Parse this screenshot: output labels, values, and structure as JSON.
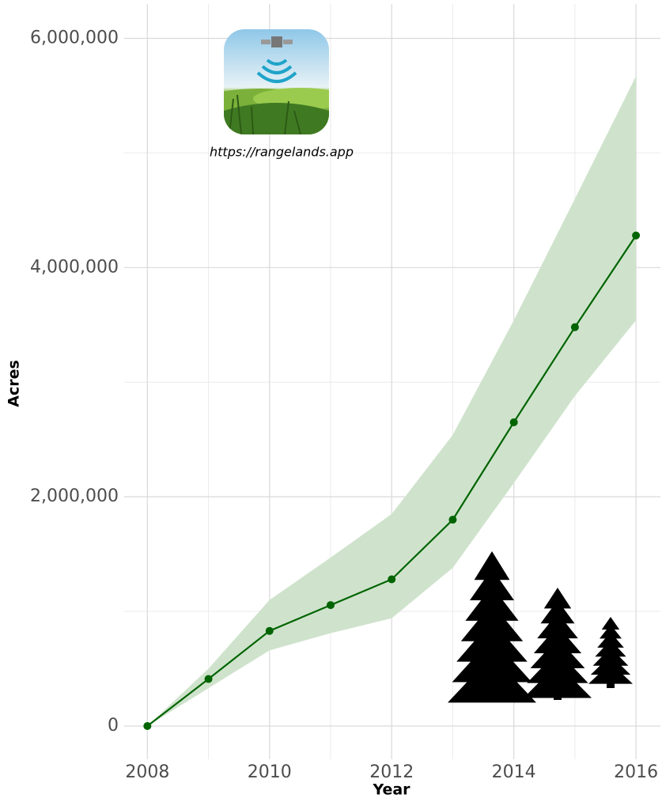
{
  "chart_data": {
    "type": "line",
    "x_label": "Year",
    "y_label": "Acres",
    "annotation": "https://rangelands.app",
    "x": [
      2008,
      2009,
      2010,
      2011,
      2012,
      2013,
      2014,
      2015,
      2016
    ],
    "values": [
      0,
      410000,
      830000,
      1055000,
      1280000,
      1800000,
      2650000,
      3480000,
      4280000
    ],
    "lower": [
      0,
      330000,
      660000,
      810000,
      940000,
      1380000,
      2120000,
      2880000,
      3540000
    ],
    "upper": [
      0,
      500000,
      1100000,
      1470000,
      1850000,
      2540000,
      3540000,
      4600000,
      5670000
    ],
    "color": "#006400",
    "band_color": "#cfe3cc",
    "xlim": [
      2007.62,
      2016.4
    ],
    "ylim": [
      -290000,
      6300000
    ],
    "xticks": [
      2008,
      2010,
      2012,
      2014,
      2016
    ],
    "x_minor_ticks": [
      2009,
      2011,
      2013,
      2015
    ],
    "yticks": [
      0,
      {
        "value": 2000000,
        "label": "2,000,000"
      },
      {
        "value": 4000000,
        "label": "4,000,000"
      },
      {
        "value": 6000000,
        "label": "6,000,000"
      }
    ],
    "y_minor_ticks": [
      1000000,
      3000000,
      5000000
    ],
    "grid": true
  }
}
